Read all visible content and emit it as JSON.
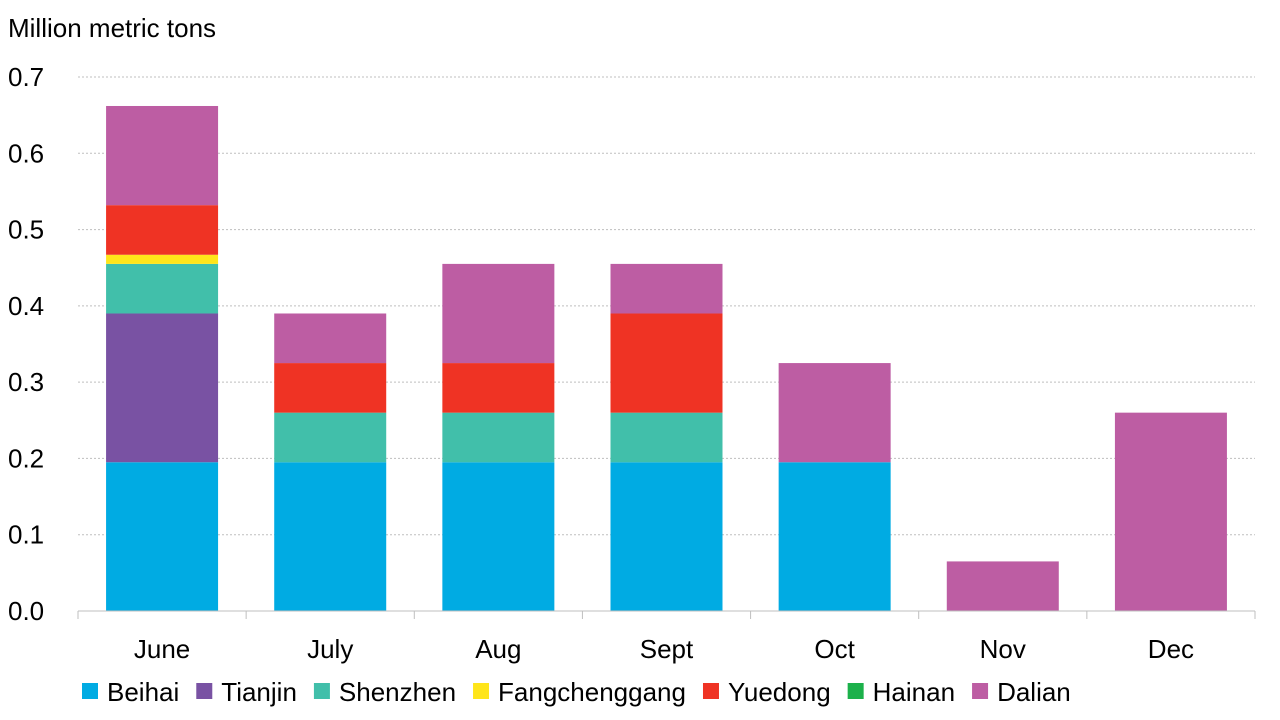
{
  "chart_data": {
    "type": "bar",
    "stacked": true,
    "title": "",
    "xlabel": "",
    "ylabel": "Million metric tons",
    "ylim": [
      0,
      0.7
    ],
    "yticks": [
      "0.0",
      "0.1",
      "0.2",
      "0.3",
      "0.4",
      "0.5",
      "0.6",
      "0.7"
    ],
    "grid": "horizontal dotted",
    "legend_position": "bottom",
    "categories": [
      "June",
      "July",
      "Aug",
      "Sept",
      "Oct",
      "Nov",
      "Dec"
    ],
    "series": [
      {
        "name": "Beihai",
        "color": "#00ABE3",
        "values": [
          0.195,
          0.195,
          0.195,
          0.195,
          0.195,
          0,
          0
        ]
      },
      {
        "name": "Tianjin",
        "color": "#7952A3",
        "values": [
          0.195,
          0,
          0,
          0,
          0,
          0,
          0
        ]
      },
      {
        "name": "Shenzhen",
        "color": "#41BFAA",
        "values": [
          0.065,
          0.065,
          0.065,
          0.065,
          0,
          0,
          0
        ]
      },
      {
        "name": "Fangchenggang",
        "color": "#FFE51A",
        "values": [
          0.012,
          0,
          0,
          0,
          0,
          0,
          0
        ]
      },
      {
        "name": "Yuedong",
        "color": "#EF3324",
        "values": [
          0.065,
          0.065,
          0.065,
          0.13,
          0,
          0,
          0
        ]
      },
      {
        "name": "Hainan",
        "color": "#1CB14B",
        "values": [
          0,
          0,
          0,
          0,
          0,
          0,
          0
        ]
      },
      {
        "name": "Dalian",
        "color": "#BD5DA3",
        "values": [
          0.13,
          0.065,
          0.13,
          0.065,
          0.13,
          0.065,
          0.26
        ]
      }
    ]
  }
}
